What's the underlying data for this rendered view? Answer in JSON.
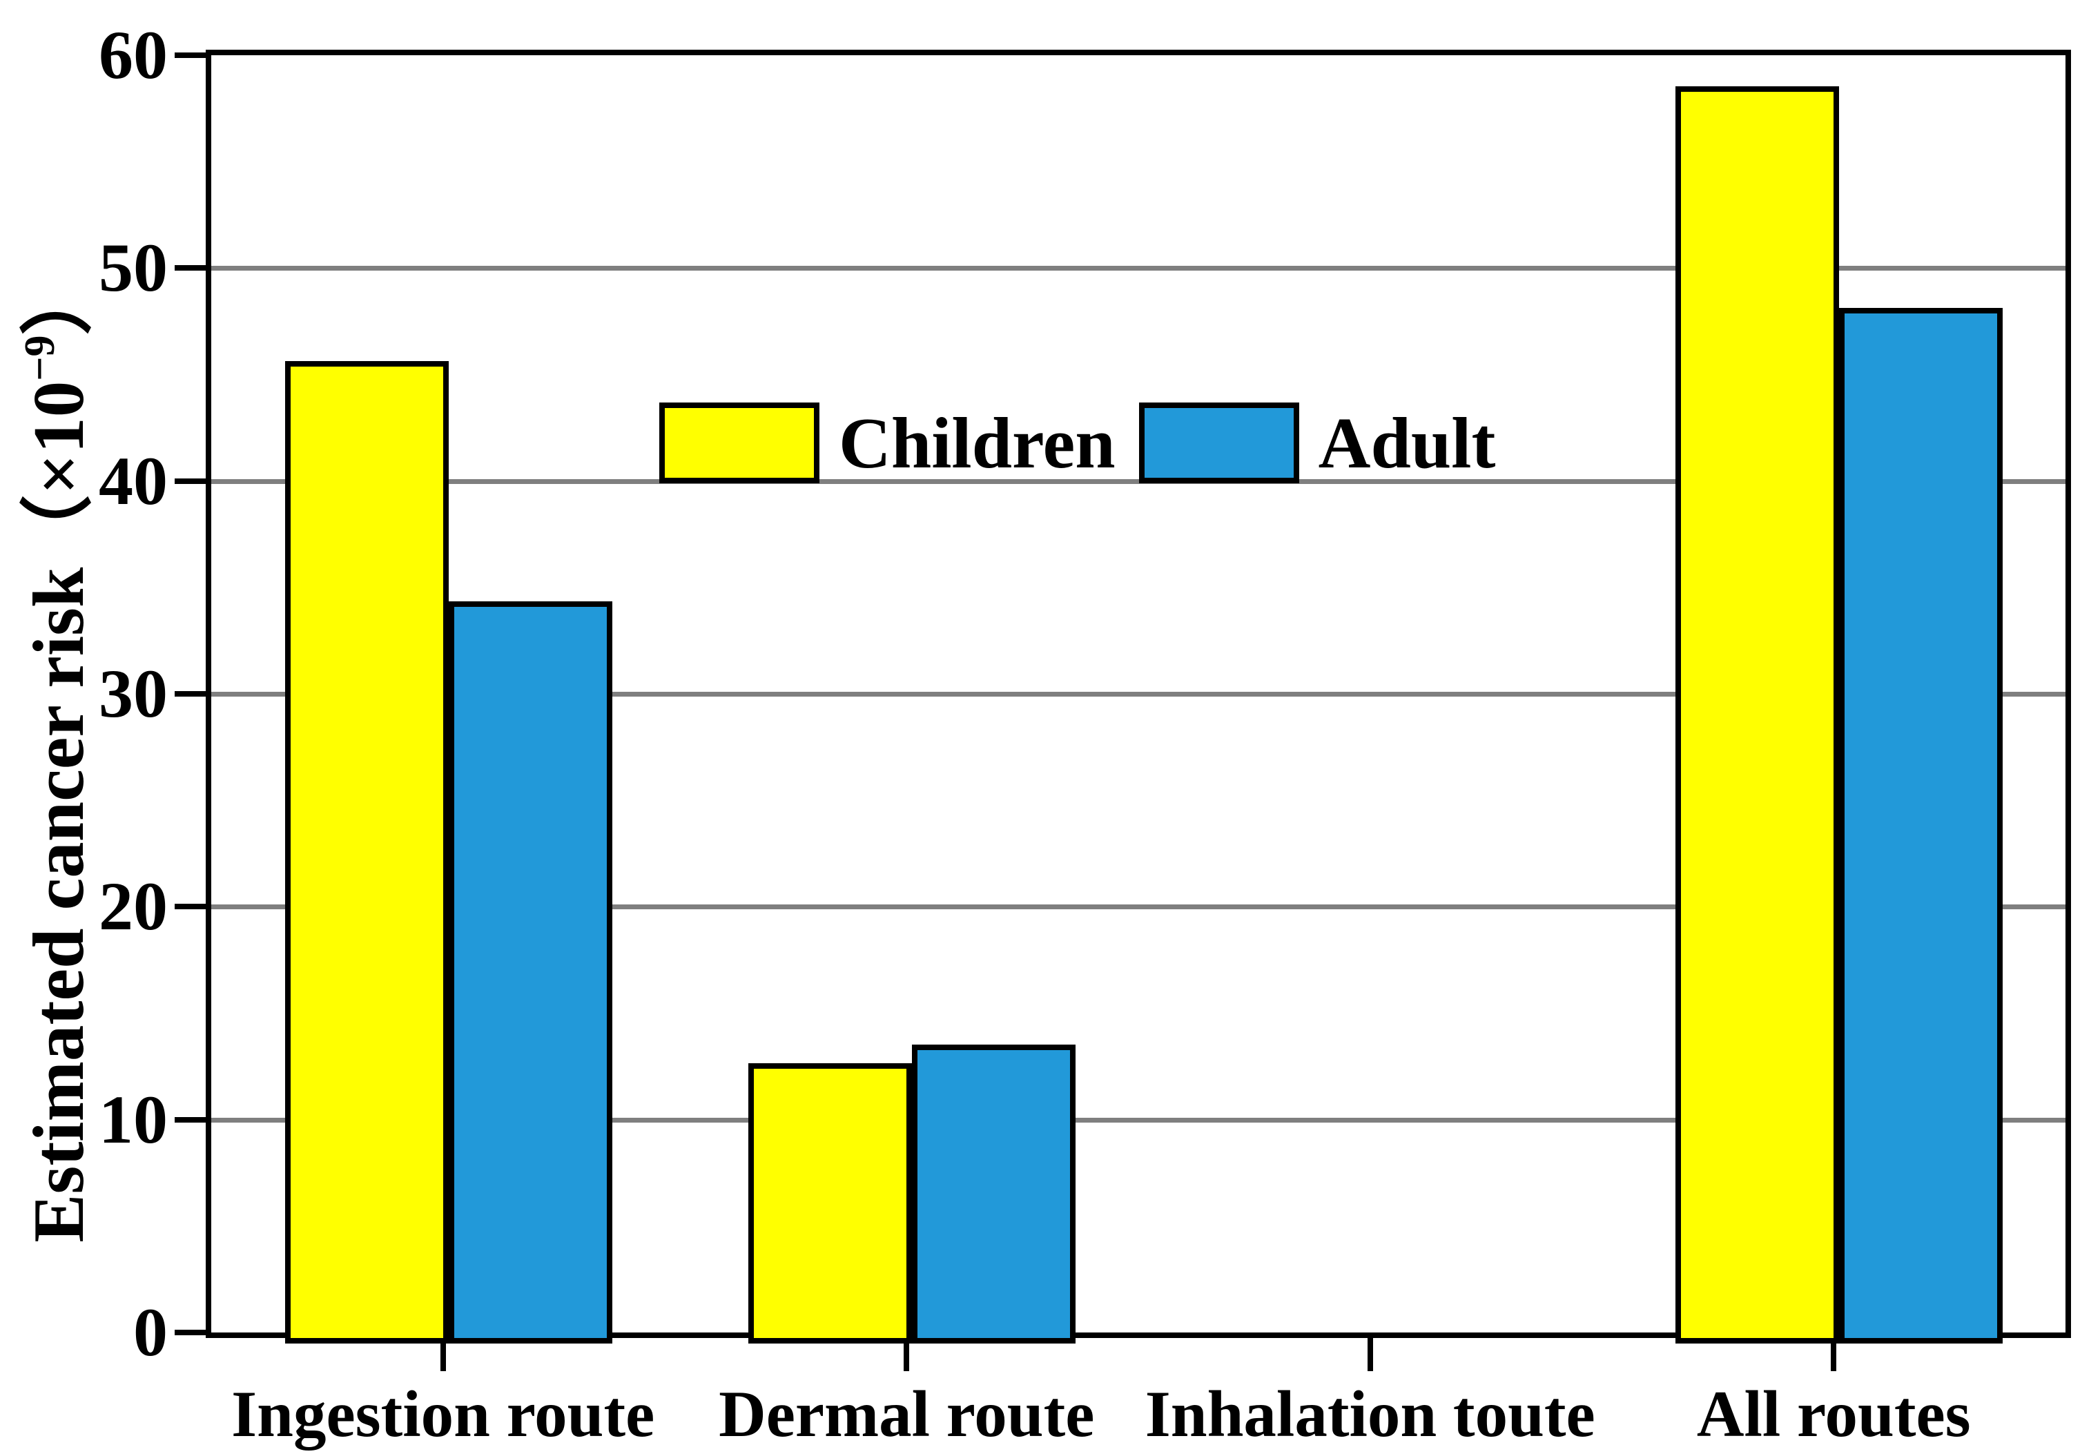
{
  "chart_data": {
    "type": "bar",
    "title": "",
    "categories": [
      "Ingestion route",
      "Dermal route",
      "Inhalation toute",
      "All routes"
    ],
    "series": [
      {
        "name": "Children",
        "color": "#ffff00",
        "values": [
          45.9,
          12.9,
          0,
          58.8
        ]
      },
      {
        "name": "Adult",
        "color": "#2299d9",
        "values": [
          34.6,
          13.8,
          0,
          48.4
        ]
      }
    ],
    "xlabel": "",
    "ylabel": "Estimated cancer risk（×10⁻⁹）",
    "ylabel_parts": {
      "prefix": "Estimated cancer risk",
      "open": "（",
      "base": "×10",
      "exp": "−9",
      "close": "）"
    },
    "ylim": [
      0,
      60
    ],
    "yticks": [
      0,
      10,
      20,
      30,
      40,
      50,
      60
    ],
    "grid": "horizontal",
    "gridline_color": "#7f7f7f",
    "frame_color": "#000000",
    "legend_position": "upper-center-inside"
  },
  "legend": {
    "items": [
      {
        "label": "Children",
        "color": "#ffff00"
      },
      {
        "label": "Adult",
        "color": "#2299d9"
      }
    ]
  }
}
